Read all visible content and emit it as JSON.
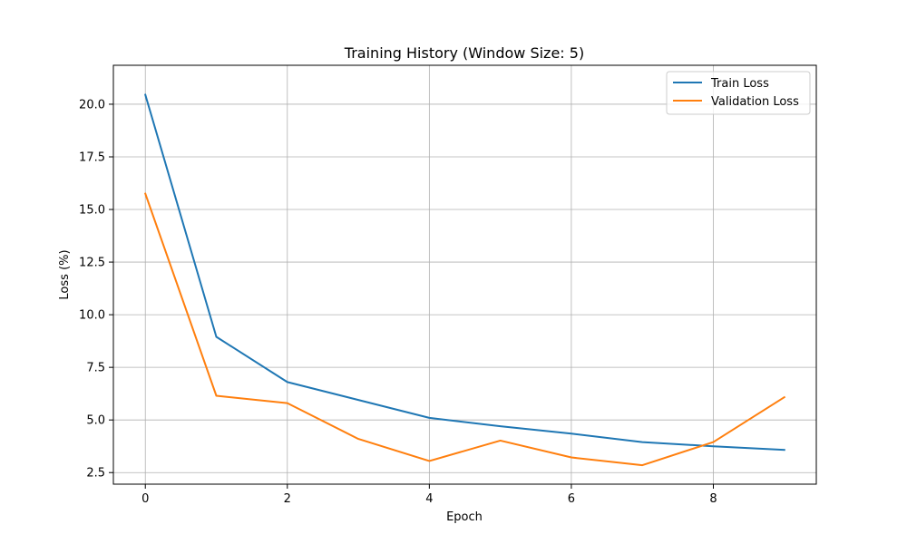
{
  "chart_data": {
    "type": "line",
    "title": "Training History (Window Size: 5)",
    "xlabel": "Epoch",
    "ylabel": "Loss (%)",
    "x": [
      0,
      1,
      2,
      3,
      4,
      5,
      6,
      7,
      8,
      9
    ],
    "xlim": [
      -0.45,
      9.45
    ],
    "ylim": [
      1.95,
      21.85
    ],
    "xticks": [
      0,
      2,
      4,
      6,
      8
    ],
    "yticks": [
      2.5,
      5.0,
      7.5,
      10.0,
      12.5,
      15.0,
      17.5,
      20.0
    ],
    "xtick_labels": [
      "0",
      "2",
      "4",
      "6",
      "8"
    ],
    "ytick_labels": [
      "2.5",
      "5.0",
      "7.5",
      "10.0",
      "12.5",
      "15.0",
      "17.5",
      "20.0"
    ],
    "grid": true,
    "legend_position": "top-right",
    "series": [
      {
        "name": "Train Loss",
        "color": "#1f77b4",
        "values": [
          20.45,
          8.95,
          6.8,
          5.95,
          5.1,
          4.7,
          4.35,
          3.95,
          3.75,
          3.58
        ]
      },
      {
        "name": "Validation Loss",
        "color": "#ff7f0e",
        "values": [
          15.75,
          6.15,
          5.8,
          4.1,
          3.05,
          4.02,
          3.22,
          2.85,
          3.95,
          6.08
        ]
      }
    ]
  }
}
